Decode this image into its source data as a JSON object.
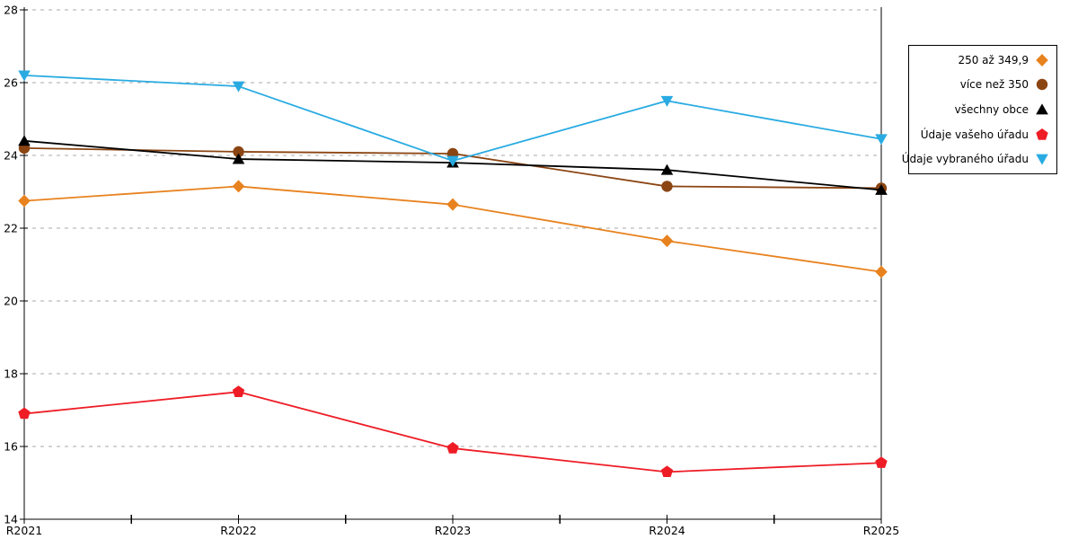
{
  "chart_data": {
    "type": "line",
    "title": "",
    "xlabel": "",
    "ylabel": "",
    "categories": [
      "R2021",
      "R2022",
      "R2023",
      "R2024",
      "R2025"
    ],
    "series": [
      {
        "name": "250 až 349,9",
        "color": "#E8821E",
        "marker": "diamond",
        "values": [
          22.75,
          23.15,
          22.65,
          21.65,
          20.8
        ]
      },
      {
        "name": "více než 350",
        "color": "#8B4513",
        "marker": "circle",
        "values": [
          24.2,
          24.1,
          24.05,
          23.15,
          23.1
        ]
      },
      {
        "name": "všechny obce",
        "color": "#000000",
        "marker": "triangle-up",
        "values": [
          24.4,
          23.9,
          23.8,
          23.6,
          23.05
        ]
      },
      {
        "name": "Údaje vašeho úřadu",
        "color": "#EE1C25",
        "marker": "pentagon",
        "values": [
          16.9,
          17.5,
          15.95,
          15.3,
          15.55
        ]
      },
      {
        "name": "Údaje vybraného úřadu",
        "color": "#29ABE2",
        "marker": "triangle-down",
        "values": [
          26.2,
          25.9,
          23.85,
          25.5,
          24.45
        ]
      }
    ],
    "ylim": [
      14,
      28
    ],
    "yticks": [
      14,
      16,
      18,
      20,
      22,
      24,
      26,
      28
    ],
    "grid": "horizontal-dashed",
    "grid_color": "#A8A8A8",
    "axis_color": "#000000",
    "legend_position": "top-right"
  }
}
